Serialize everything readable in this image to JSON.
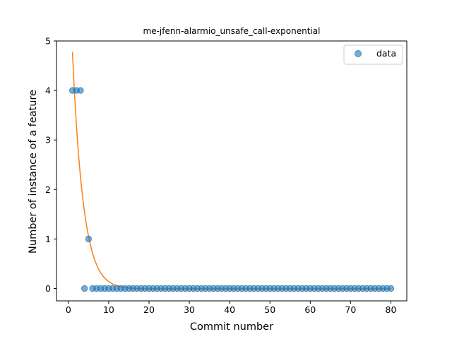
{
  "chart_data": {
    "type": "scatter",
    "title": "me-jfenn-alarmio_unsafe_call-exponential",
    "xlabel": "Commit number",
    "ylabel": "Number of instance of a feature",
    "xlim": [
      -2.95,
      83.95
    ],
    "ylim": [
      -0.25,
      5.0
    ],
    "xticks": [
      0,
      10,
      20,
      30,
      40,
      50,
      60,
      70,
      80
    ],
    "yticks": [
      0,
      1,
      2,
      3,
      4,
      5
    ],
    "grid": false,
    "legend_position": "top-right",
    "series": [
      {
        "name": "data",
        "kind": "scatter",
        "color": "#1f77b4",
        "x": [
          1,
          2,
          3,
          4,
          5,
          6,
          7,
          8,
          9,
          10,
          11,
          12,
          13,
          14,
          15,
          16,
          17,
          18,
          19,
          20,
          21,
          22,
          23,
          24,
          25,
          26,
          27,
          28,
          29,
          30,
          31,
          32,
          33,
          34,
          35,
          36,
          37,
          38,
          39,
          40,
          41,
          42,
          43,
          44,
          45,
          46,
          47,
          48,
          49,
          50,
          51,
          52,
          53,
          54,
          55,
          56,
          57,
          58,
          59,
          60,
          61,
          62,
          63,
          64,
          65,
          66,
          67,
          68,
          69,
          70,
          71,
          72,
          73,
          74,
          75,
          76,
          77,
          78,
          79,
          80
        ],
        "y": [
          4,
          4,
          4,
          0,
          1,
          0,
          0,
          0,
          0,
          0,
          0,
          0,
          0,
          0,
          0,
          0,
          0,
          0,
          0,
          0,
          0,
          0,
          0,
          0,
          0,
          0,
          0,
          0,
          0,
          0,
          0,
          0,
          0,
          0,
          0,
          0,
          0,
          0,
          0,
          0,
          0,
          0,
          0,
          0,
          0,
          0,
          0,
          0,
          0,
          0,
          0,
          0,
          0,
          0,
          0,
          0,
          0,
          0,
          0,
          0,
          0,
          0,
          0,
          0,
          0,
          0,
          0,
          0,
          0,
          0,
          0,
          0,
          0,
          0,
          0,
          0,
          0,
          0,
          0,
          0
        ]
      },
      {
        "kind": "line",
        "color": "#ff7f0e",
        "x": [
          1,
          1.5,
          2,
          2.5,
          3,
          3.5,
          4,
          4.5,
          5,
          5.5,
          6,
          6.5,
          7,
          7.5,
          8,
          8.5,
          9,
          9.5,
          10,
          11,
          12,
          13,
          14,
          15,
          16,
          17,
          18,
          20,
          25,
          30,
          40,
          50,
          60,
          70,
          80
        ],
        "y": [
          4.78,
          3.96,
          3.28,
          2.72,
          2.25,
          1.86,
          1.54,
          1.27,
          1.05,
          0.87,
          0.71,
          0.58,
          0.48,
          0.39,
          0.32,
          0.26,
          0.21,
          0.17,
          0.14,
          0.09,
          0.06,
          0.035,
          0.02,
          0.01,
          0.004,
          0.0,
          -0.003,
          -0.005,
          -0.006,
          -0.006,
          -0.006,
          -0.006,
          -0.006,
          -0.006,
          -0.006
        ]
      }
    ]
  }
}
